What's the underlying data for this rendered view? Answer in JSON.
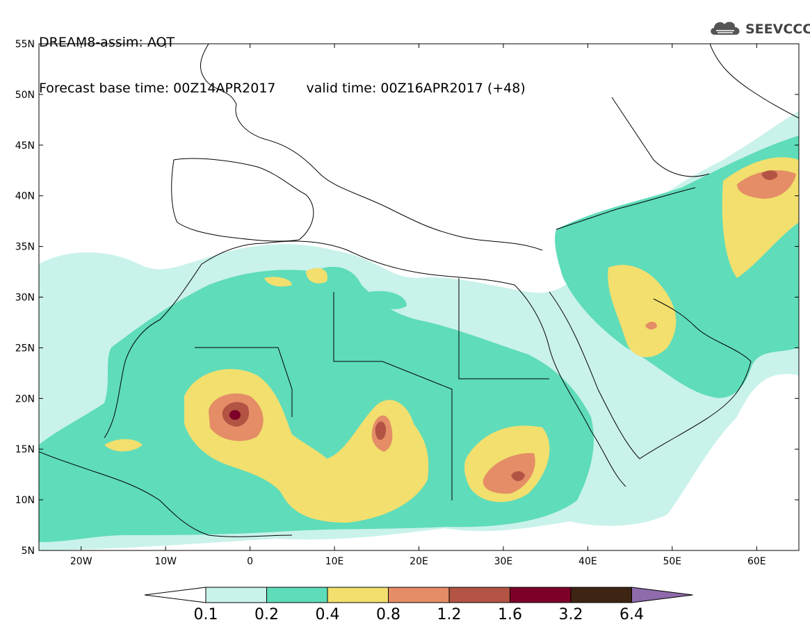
{
  "header": {
    "title": "DREAM8-assim: AOT",
    "base_time": "Forecast base time: 00Z14APR2017",
    "valid_time": "valid time: 00Z16APR2017 (+48)"
  },
  "logo": {
    "text": "SEEVCCC",
    "icon": "cloud-icon"
  },
  "map": {
    "lon_range": [
      -25,
      65
    ],
    "lat_range": [
      5,
      55
    ],
    "lat_labels": [
      "5N",
      "10N",
      "15N",
      "20N",
      "25N",
      "30N",
      "35N",
      "40N",
      "45N",
      "50N",
      "55N"
    ],
    "lon_labels": [
      "20W",
      "10W",
      "0",
      "10E",
      "20E",
      "30E",
      "40E",
      "50E",
      "60E"
    ],
    "variable": "AOT"
  },
  "colorbar": {
    "labels": [
      "0.1",
      "0.2",
      "0.4",
      "0.8",
      "1.2",
      "1.6",
      "3.2",
      "6.4"
    ],
    "colors": [
      "#ffffff",
      "#c9f2ea",
      "#5fdcba",
      "#f2df6e",
      "#e48d66",
      "#b25344",
      "#7d0028",
      "#3e2412",
      "#8f6bab"
    ]
  }
}
